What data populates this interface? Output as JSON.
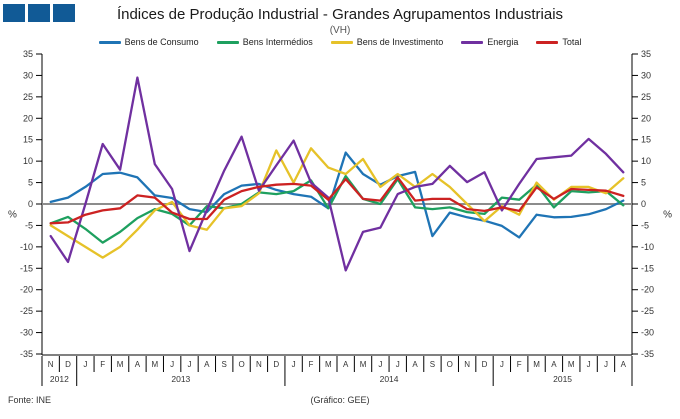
{
  "header": {
    "title": "Índices de Produção Industrial - Grandes Agrupamentos Industriais",
    "subtitle": "(VH)"
  },
  "footer": {
    "source": "Fonte: INE",
    "credit": "(Gráfico: GEE)"
  },
  "logo": {
    "name": "three-blue-squares-logo",
    "color": "#115A96",
    "square_count": 3
  },
  "chart_data": {
    "type": "line",
    "title": "Índices de Produção Industrial - Grandes Agrupamentos Industriais",
    "subtitle": "(VH)",
    "ylabel_left": "%",
    "ylabel_right": "%",
    "ylim": [
      -35,
      35
    ],
    "ytick_step": 5,
    "grid": false,
    "zero_line_color": "#8C8C8C",
    "axis_color": "#000000",
    "legend_position": "top",
    "x_months": [
      "N",
      "D",
      "J",
      "F",
      "M",
      "A",
      "M",
      "J",
      "J",
      "A",
      "S",
      "O",
      "N",
      "D",
      "J",
      "F",
      "M",
      "A",
      "M",
      "J",
      "J",
      "A",
      "S",
      "O",
      "N",
      "D",
      "J",
      "F",
      "M",
      "A",
      "M",
      "J",
      "J",
      "A"
    ],
    "year_groups": [
      {
        "label": "2012",
        "span": 2
      },
      {
        "label": "2013",
        "span": 12
      },
      {
        "label": "2014",
        "span": 12
      },
      {
        "label": "2015",
        "span": 8
      }
    ],
    "series": [
      {
        "name": "Bens de Consumo",
        "color": "#1F74B5",
        "values": [
          0.5,
          1.5,
          4,
          7,
          7.3,
          6.2,
          2,
          1.4,
          -1.2,
          -1.9,
          2.3,
          4.3,
          4.7,
          3.3,
          2.3,
          1.7,
          -1,
          12,
          7,
          4.5,
          6.5,
          7.5,
          -7.5,
          -2,
          -3.1,
          -3.9,
          -5.1,
          -7.8,
          -2.5,
          -3.1,
          -3,
          -2.4,
          -1.2,
          0.8
        ]
      },
      {
        "name": "Bens Intermédios",
        "color": "#1EA05F",
        "values": [
          -4.5,
          -3,
          -5.8,
          -9,
          -6.5,
          -3.3,
          -1.2,
          -2.3,
          -5,
          -0.5,
          -1,
          0,
          2.7,
          2.3,
          3,
          5.5,
          -1,
          6.5,
          1.2,
          0,
          5.8,
          -0.8,
          -1.2,
          -0.8,
          -1.9,
          -2.3,
          1.5,
          1,
          4.5,
          -0.8,
          3,
          2.7,
          3,
          -0.3
        ]
      },
      {
        "name": "Bens de Investimento",
        "color": "#E6C229",
        "values": [
          -5,
          -7.5,
          -10,
          -12.5,
          -10,
          -6,
          -1.5,
          0.5,
          -5,
          -6,
          -1,
          -0.5,
          2.5,
          12.5,
          5,
          13,
          8.5,
          7,
          10.5,
          4,
          7,
          4,
          7,
          4,
          0,
          -4,
          -0.5,
          -2.5,
          5,
          1,
          4,
          4,
          2.5,
          6
        ]
      },
      {
        "name": "Energia",
        "color": "#7030A0",
        "values": [
          -7.5,
          -13.5,
          0,
          14,
          8,
          29.5,
          9.3,
          3.5,
          -11,
          -1.4,
          7.8,
          15.7,
          3.1,
          9,
          14.8,
          5,
          1.5,
          -15.5,
          -6.5,
          -5.5,
          2.3,
          4,
          4.7,
          8.9,
          5.1,
          7.4,
          -1.5,
          4.7,
          10.5,
          10.9,
          11.3,
          15.2,
          11.7,
          7.4
        ]
      },
      {
        "name": "Total",
        "color": "#CC2222",
        "values": [
          -4.5,
          -4.3,
          -2.5,
          -1.5,
          -1,
          2,
          1.5,
          -2,
          -3.5,
          -3.5,
          1,
          3,
          4,
          4.5,
          4.7,
          4.3,
          1,
          5.8,
          1.2,
          0.8,
          6.2,
          0.8,
          1.2,
          1.2,
          -1.2,
          -1.6,
          -0.8,
          -1.6,
          3.9,
          1.2,
          3.5,
          3.3,
          3.1,
          1.9
        ]
      }
    ]
  }
}
